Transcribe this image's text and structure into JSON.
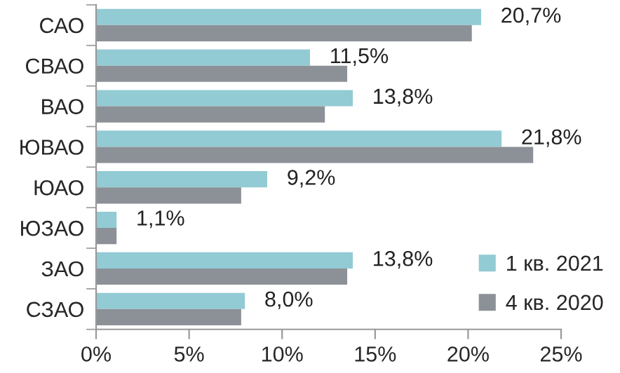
{
  "chart_data": {
    "type": "bar",
    "orientation": "horizontal",
    "categories": [
      "САО",
      "СВАО",
      "ВАО",
      "ЮВАО",
      "ЮАО",
      "ЮЗАО",
      "ЗАО",
      "СЗАО"
    ],
    "series": [
      {
        "name": "1 кв. 2021",
        "color": "#92cbd4",
        "values": [
          20.7,
          11.5,
          13.8,
          21.8,
          9.2,
          1.1,
          13.8,
          8.0
        ],
        "value_labels": [
          "20,7%",
          "11,5%",
          "13,8%",
          "21,8%",
          "9,2%",
          "1,1%",
          "13,8%",
          "8,0%"
        ]
      },
      {
        "name": "4 кв. 2020",
        "color": "#8c9197",
        "values": [
          20.2,
          13.5,
          12.3,
          23.5,
          7.8,
          1.1,
          13.5,
          7.8
        ]
      }
    ],
    "xlim": [
      0,
      25
    ],
    "xticks": [
      {
        "value": 0,
        "label": "0%"
      },
      {
        "value": 5,
        "label": "5%"
      },
      {
        "value": 10,
        "label": "10%"
      },
      {
        "value": 15,
        "label": "15%"
      },
      {
        "value": 20,
        "label": "20%"
      },
      {
        "value": 25,
        "label": "25%"
      }
    ],
    "grid": false,
    "legend": "bottom right"
  }
}
